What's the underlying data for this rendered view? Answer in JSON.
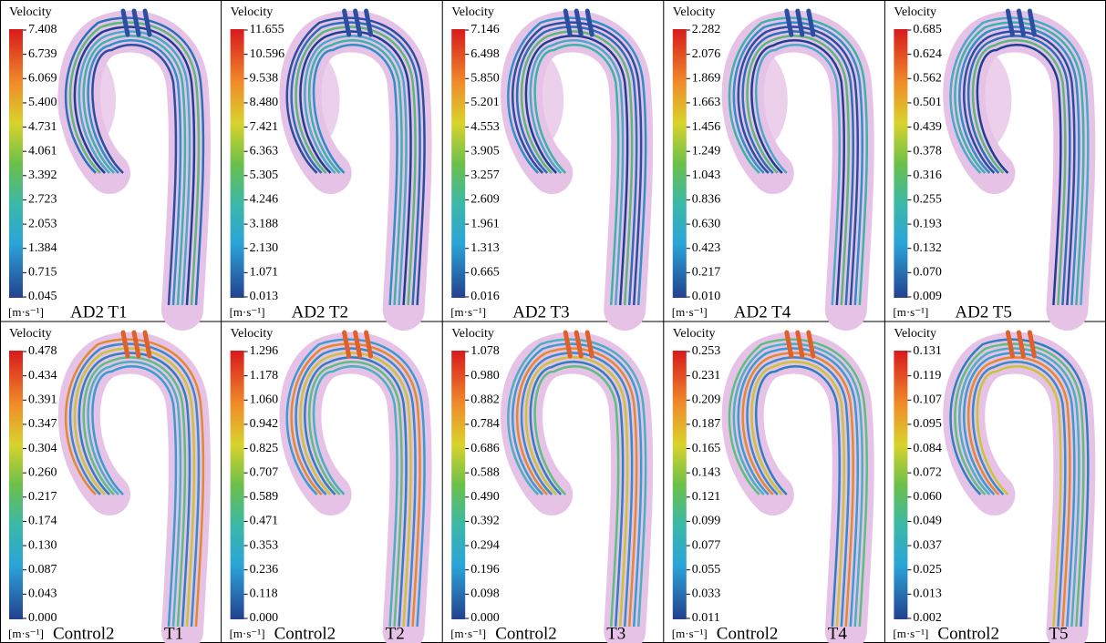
{
  "panels": [
    {
      "title": "Velocity",
      "unit": "[m·s⁻¹]",
      "labels": [
        "AD2 T1"
      ],
      "ticks": [
        "7.408",
        "6.739",
        "6.069",
        "5.400",
        "4.731",
        "4.061",
        "3.392",
        "2.723",
        "2.053",
        "1.384",
        "0.715",
        "0.045"
      ]
    },
    {
      "title": "Velocity",
      "unit": "[m·s⁻¹]",
      "labels": [
        "AD2 T2"
      ],
      "ticks": [
        "11.655",
        "10.596",
        "9.538",
        "8.480",
        "7.421",
        "6.363",
        "5.305",
        "4.246",
        "3.188",
        "2.130",
        "1.071",
        "0.013"
      ]
    },
    {
      "title": "Velocity",
      "unit": "[m·s⁻¹]",
      "labels": [
        "AD2 T3"
      ],
      "ticks": [
        "7.146",
        "6.498",
        "5.850",
        "5.201",
        "4.553",
        "3.905",
        "3.257",
        "2.609",
        "1.961",
        "1.313",
        "0.665",
        "0.016"
      ]
    },
    {
      "title": "Velocity",
      "unit": "[m·s⁻¹]",
      "labels": [
        "AD2 T4"
      ],
      "ticks": [
        "2.282",
        "2.076",
        "1.869",
        "1.663",
        "1.456",
        "1.249",
        "1.043",
        "0.836",
        "0.630",
        "0.423",
        "0.217",
        "0.010"
      ]
    },
    {
      "title": "Velocity",
      "unit": "[m·s⁻¹]",
      "labels": [
        "AD2 T5"
      ],
      "ticks": [
        "0.685",
        "0.624",
        "0.562",
        "0.501",
        "0.439",
        "0.378",
        "0.316",
        "0.255",
        "0.193",
        "0.132",
        "0.070",
        "0.009"
      ]
    },
    {
      "title": "Velocity",
      "unit": "[m·s⁻¹]",
      "labels": [
        "Control2",
        "T1"
      ],
      "ticks": [
        "0.478",
        "0.434",
        "0.391",
        "0.347",
        "0.304",
        "0.260",
        "0.217",
        "0.174",
        "0.130",
        "0.087",
        "0.043",
        "0.000"
      ]
    },
    {
      "title": "Velocity",
      "unit": "[m·s⁻¹]",
      "labels": [
        "Control2",
        "T2"
      ],
      "ticks": [
        "1.296",
        "1.178",
        "1.060",
        "0.942",
        "0.825",
        "0.707",
        "0.589",
        "0.471",
        "0.353",
        "0.236",
        "0.118",
        "0.000"
      ]
    },
    {
      "title": "Velocity",
      "unit": "[m·s⁻¹]",
      "labels": [
        "Control2",
        "T3"
      ],
      "ticks": [
        "1.078",
        "0.980",
        "0.882",
        "0.784",
        "0.686",
        "0.588",
        "0.490",
        "0.392",
        "0.294",
        "0.196",
        "0.098",
        "0.000"
      ]
    },
    {
      "title": "Velocity",
      "unit": "[m·s⁻¹]",
      "labels": [
        "Control2",
        "T4"
      ],
      "ticks": [
        "0.253",
        "0.231",
        "0.209",
        "0.187",
        "0.165",
        "0.143",
        "0.121",
        "0.099",
        "0.077",
        "0.055",
        "0.033",
        "0.011"
      ]
    },
    {
      "title": "Velocity",
      "unit": "[m·s⁻¹]",
      "labels": [
        "Control2",
        "T5"
      ],
      "ticks": [
        "0.131",
        "0.119",
        "0.107",
        "0.095",
        "0.084",
        "0.072",
        "0.060",
        "0.049",
        "0.037",
        "0.025",
        "0.013",
        "0.002"
      ]
    }
  ]
}
